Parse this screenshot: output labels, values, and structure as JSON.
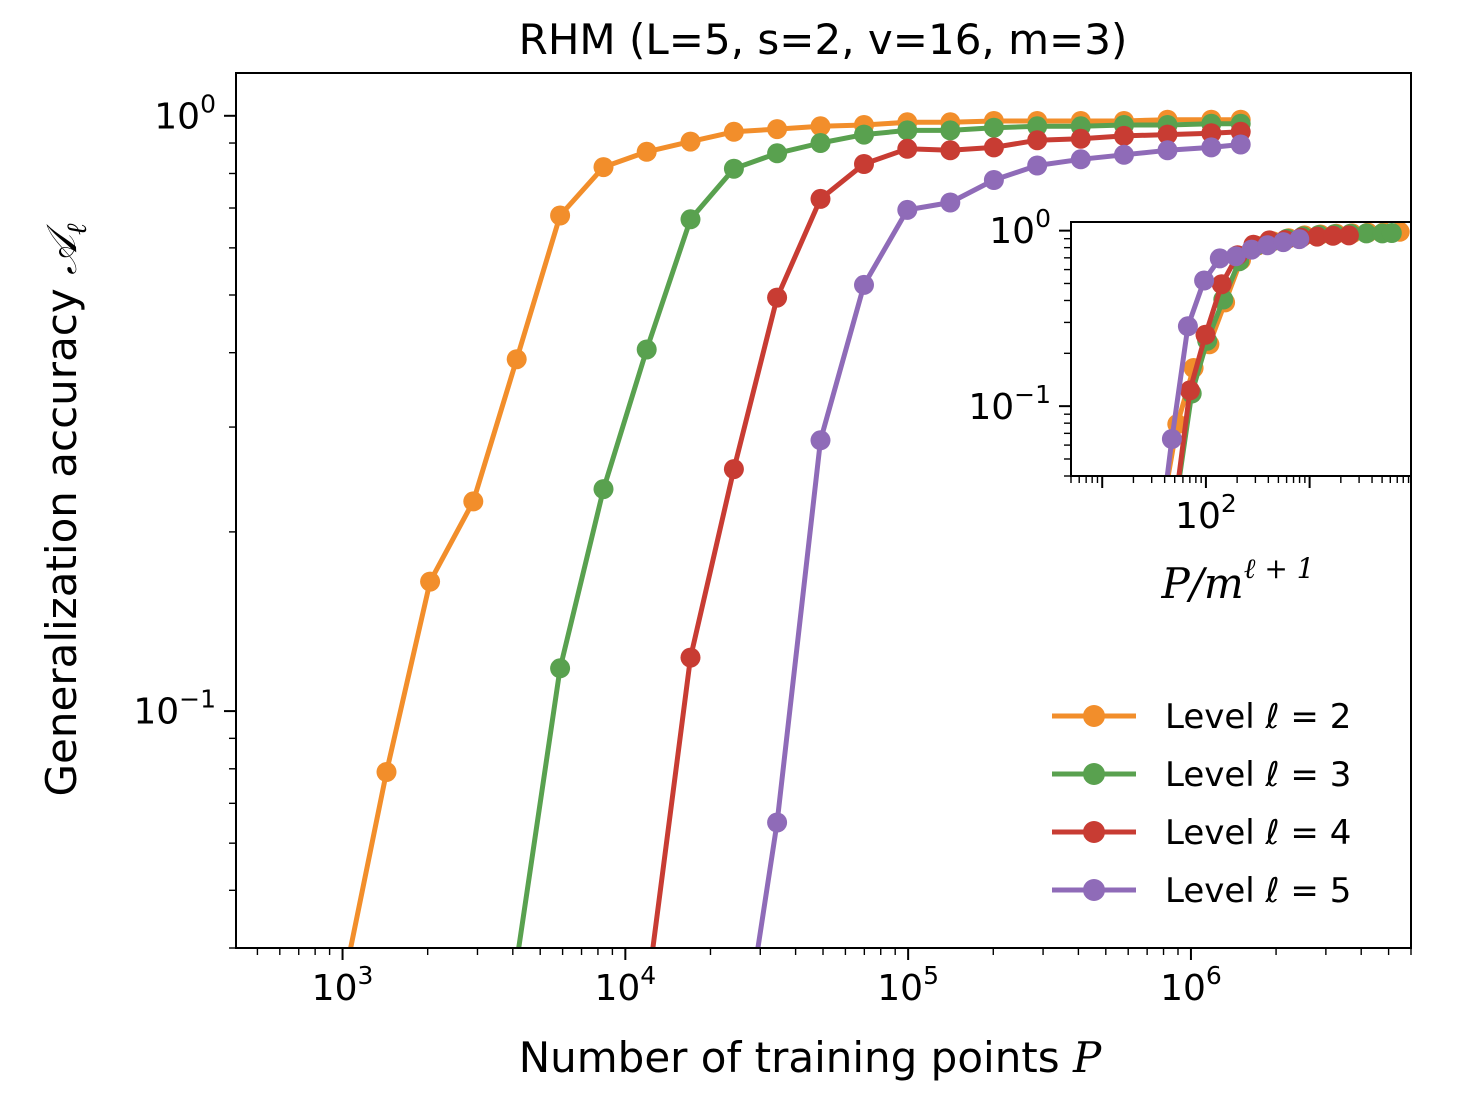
{
  "chart_data": [
    {
      "type": "line",
      "title": "RHM (L=5, s=2, v=16, m=3)",
      "xlabel": "Number of training points P",
      "ylabel": "Generalization accuracy 𝒜ℓ",
      "xscale": "log",
      "yscale": "log",
      "xlim": [
        420,
        6000000
      ],
      "ylim": [
        0.04,
        1.18
      ],
      "xticks": [
        {
          "base": "10",
          "exp": "3"
        },
        {
          "base": "10",
          "exp": "4"
        },
        {
          "base": "10",
          "exp": "5"
        },
        {
          "base": "10",
          "exp": "6"
        }
      ],
      "yticks": [
        {
          "base": "10",
          "exp": "0"
        },
        {
          "base": "10",
          "exp": "−1"
        }
      ],
      "legend_position": "bottom-right",
      "grid": false,
      "series": [
        {
          "name": "Level ℓ = 2",
          "color": "#f28e2b",
          "x": [
            1000,
            1430,
            2040,
            2900,
            4130,
            5880,
            8370,
            11900,
            17000,
            24200,
            34400,
            49000,
            69800,
            99300,
            141000,
            201000,
            286000,
            408000,
            580000,
            826000,
            1180000,
            1500000
          ],
          "y": [
            0.0,
            0.079,
            0.165,
            0.225,
            0.39,
            0.68,
            0.82,
            0.87,
            0.905,
            0.94,
            0.95,
            0.96,
            0.965,
            0.975,
            0.975,
            0.98,
            0.98,
            0.98,
            0.98,
            0.985,
            0.985,
            0.985
          ]
        },
        {
          "name": "Level ℓ = 3",
          "color": "#59a14f",
          "x": [
            4000,
            5880,
            8370,
            11900,
            17000,
            24200,
            34400,
            49000,
            69800,
            99300,
            141000,
            201000,
            286000,
            408000,
            580000,
            826000,
            1180000,
            1500000
          ],
          "y": [
            0.0,
            0.118,
            0.236,
            0.405,
            0.67,
            0.815,
            0.865,
            0.9,
            0.93,
            0.945,
            0.945,
            0.955,
            0.96,
            0.96,
            0.965,
            0.965,
            0.97,
            0.97
          ]
        },
        {
          "name": "Level ℓ = 4",
          "color": "#c83c33",
          "x": [
            12000,
            17000,
            24200,
            34400,
            49000,
            69800,
            99300,
            141000,
            201000,
            286000,
            408000,
            580000,
            826000,
            1180000,
            1500000
          ],
          "y": [
            0.0,
            0.123,
            0.255,
            0.495,
            0.725,
            0.83,
            0.88,
            0.875,
            0.885,
            0.91,
            0.915,
            0.925,
            0.93,
            0.935,
            0.94
          ]
        },
        {
          "name": "Level ℓ = 5",
          "color": "#8f6bb8",
          "x": [
            28000,
            34400,
            49000,
            69800,
            99300,
            141000,
            201000,
            286000,
            408000,
            580000,
            826000,
            1180000,
            1500000
          ],
          "y": [
            0.0,
            0.065,
            0.285,
            0.52,
            0.695,
            0.715,
            0.78,
            0.825,
            0.845,
            0.86,
            0.875,
            0.885,
            0.895
          ]
        }
      ]
    },
    {
      "type": "line",
      "title": "",
      "xlabel": "P/m^{ℓ+1}",
      "ylabel": "",
      "xscale": "log",
      "yscale": "log",
      "xlim": [
        5,
        9500
      ],
      "ylim": [
        0.04,
        1.12
      ],
      "xticks": [
        {
          "base": "10",
          "exp": "2"
        }
      ],
      "yticks": [
        {
          "base": "10",
          "exp": "0"
        },
        {
          "base": "10",
          "exp": "−1"
        }
      ],
      "series": [
        {
          "name": "Level ℓ = 2",
          "color": "#f28e2b",
          "x": [
            37,
            53,
            76,
            108,
            153,
            218,
            310,
            441,
            628,
            893,
            1270,
            1810,
            2570,
            3660,
            5200,
            7400
          ],
          "y": [
            0.0,
            0.079,
            0.165,
            0.225,
            0.39,
            0.68,
            0.82,
            0.87,
            0.905,
            0.94,
            0.95,
            0.96,
            0.965,
            0.975,
            0.98,
            0.985
          ]
        },
        {
          "name": "Level ℓ = 3",
          "color": "#59a14f",
          "x": [
            49,
            73,
            103,
            147,
            210,
            299,
            425,
            605,
            862,
            1230,
            1750,
            2480,
            3530,
            5020,
            6200
          ],
          "y": [
            0.0,
            0.118,
            0.236,
            0.405,
            0.67,
            0.815,
            0.865,
            0.9,
            0.93,
            0.945,
            0.955,
            0.96,
            0.965,
            0.965,
            0.97
          ]
        },
        {
          "name": "Level ℓ = 4",
          "color": "#c83c33",
          "x": [
            49,
            70,
            99,
            142,
            202,
            287,
            409,
            582,
            827,
            1180,
            1680,
            2390
          ],
          "y": [
            0.0,
            0.123,
            0.255,
            0.495,
            0.725,
            0.83,
            0.88,
            0.885,
            0.91,
            0.925,
            0.935,
            0.94
          ]
        },
        {
          "name": "Level ℓ = 5",
          "color": "#8f6bb8",
          "x": [
            38,
            47,
            67,
            96,
            136,
            194,
            276,
            392,
            558,
            795
          ],
          "y": [
            0.0,
            0.065,
            0.285,
            0.52,
            0.695,
            0.715,
            0.78,
            0.825,
            0.86,
            0.895
          ]
        }
      ]
    }
  ]
}
